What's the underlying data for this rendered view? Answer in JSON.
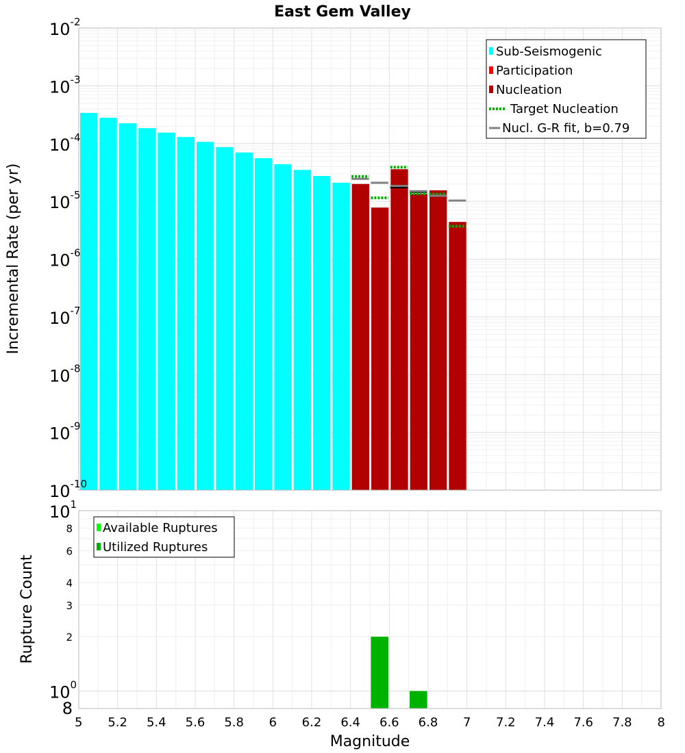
{
  "chart_data": [
    {
      "type": "bar",
      "title": "East Gem Valley",
      "ylabel": "Incremental Rate (per yr)",
      "xlim": [
        5,
        8
      ],
      "ylim": [
        1e-10,
        0.01
      ],
      "y_scale": "log",
      "grid": true,
      "legend_position": "top-right",
      "y_ticks": [
        {
          "base": "10",
          "exp": "-2"
        },
        {
          "base": "10",
          "exp": "-3"
        },
        {
          "base": "10",
          "exp": "-4"
        },
        {
          "base": "10",
          "exp": "-5"
        },
        {
          "base": "10",
          "exp": "-6"
        },
        {
          "base": "10",
          "exp": "-7"
        },
        {
          "base": "10",
          "exp": "-8"
        },
        {
          "base": "10",
          "exp": "-9"
        },
        {
          "base": "10",
          "exp": "-10"
        }
      ],
      "legend": [
        {
          "label": "Sub-Seismogenic",
          "style": "square",
          "color": "#00ffff"
        },
        {
          "label": "Participation",
          "style": "square",
          "color": "#ff0000"
        },
        {
          "label": "Nucleation",
          "style": "square",
          "color": "#b20000"
        },
        {
          "label": "Target Nucleation",
          "style": "dotted",
          "color": "#00b200"
        },
        {
          "label": "Nucl. G-R fit, b=0.79",
          "style": "line",
          "color": "#808080"
        }
      ],
      "series": [
        {
          "name": "Sub-Seismogenic",
          "color": "#00ffff",
          "bin_width": 0.1,
          "x": [
            5.05,
            5.15,
            5.25,
            5.35,
            5.45,
            5.55,
            5.65,
            5.75,
            5.85,
            5.95,
            6.05,
            6.15,
            6.25,
            6.35
          ],
          "values": [
            0.00034,
            0.00028,
            0.000225,
            0.000185,
            0.000155,
            0.00013,
            0.000107,
            8.7e-05,
            7e-05,
            5.6e-05,
            4.4e-05,
            3.5e-05,
            2.75e-05,
            2.1e-05
          ]
        },
        {
          "name": "Nucleation",
          "color": "#b20000",
          "bin_width": 0.1,
          "x": [
            6.45,
            6.55,
            6.65,
            6.75,
            6.85,
            6.95
          ],
          "values": [
            2e-05,
            7.8e-06,
            3.6e-05,
            1.35e-05,
            1.55e-05,
            4.4e-06
          ]
        },
        {
          "name": "Participation",
          "color": "#000000",
          "style": "tick",
          "x": [
            6.65,
            6.75,
            6.85
          ],
          "values": [
            1.75e-05,
            1.45e-05,
            1.25e-05
          ]
        },
        {
          "name": "Target Nucleation",
          "color": "#00b200",
          "style": "dotted",
          "x": [
            6.45,
            6.55,
            6.65,
            6.75,
            6.85,
            6.95
          ],
          "values": [
            2.7e-05,
            1.15e-05,
            3.9e-05,
            1.35e-05,
            1.33e-05,
            3.7e-06
          ]
        },
        {
          "name": "Nucl. G-R fit, b=0.79",
          "color": "#808080",
          "style": "tick",
          "x": [
            6.45,
            6.55,
            6.65,
            6.75,
            6.85,
            6.95
          ],
          "values": [
            2.45e-05,
            2.1e-05,
            1.85e-05,
            1.5e-05,
            1.25e-05,
            1.03e-05
          ]
        }
      ]
    },
    {
      "type": "bar",
      "xlabel": "Magnitude",
      "ylabel": "Rupture Count",
      "xlim": [
        5,
        8
      ],
      "ylim": [
        0.8,
        10
      ],
      "y_scale": "log",
      "grid": true,
      "legend_position": "top-left",
      "x_ticks": [
        "5",
        "5.2",
        "5.4",
        "5.6",
        "5.8",
        "6",
        "6.2",
        "6.4",
        "6.6",
        "6.8",
        "7",
        "7.2",
        "7.4",
        "7.6",
        "7.8",
        "8"
      ],
      "y_ticks_major": [
        {
          "value": 10,
          "base": "10",
          "exp": "1"
        },
        {
          "value": 1,
          "base": "10",
          "exp": "0"
        }
      ],
      "y_ticks_minor": [
        {
          "value": 8,
          "label": "8"
        },
        {
          "value": 6,
          "label": "6"
        },
        {
          "value": 4,
          "label": "4"
        },
        {
          "value": 3,
          "label": "3"
        },
        {
          "value": 2,
          "label": "2"
        }
      ],
      "y_tick_bottom": {
        "value": 0.8,
        "label": "8"
      },
      "legend": [
        {
          "label": "Available Ruptures",
          "color": "#00ff00"
        },
        {
          "label": "Utilized Ruptures",
          "color": "#00b200"
        }
      ],
      "series": [
        {
          "name": "Utilized Ruptures",
          "color": "#00b200",
          "bin_width": 0.09,
          "x": [
            6.55,
            6.75
          ],
          "values": [
            2,
            1
          ]
        }
      ]
    }
  ]
}
